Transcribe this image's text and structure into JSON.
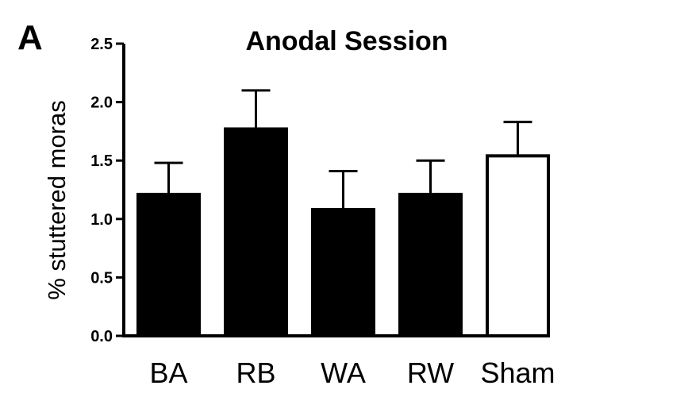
{
  "panel_label": "A",
  "chart_data": {
    "type": "bar",
    "title": "Anodal Session",
    "xlabel": "",
    "ylabel": "% stuttered moras",
    "categories": [
      "BA",
      "RB",
      "WA",
      "RW",
      "Sham"
    ],
    "values": [
      1.21,
      1.77,
      1.08,
      1.21,
      1.54
    ],
    "error_upper": [
      0.27,
      0.33,
      0.33,
      0.29,
      0.29
    ],
    "bar_fill": [
      "#000000",
      "#000000",
      "#000000",
      "#000000",
      "#ffffff"
    ],
    "ylim": [
      0,
      2.5
    ],
    "yticks": [
      "0.0",
      "0.5",
      "1.0",
      "1.5",
      "2.0",
      "2.5"
    ],
    "grid": false,
    "legend": "none"
  }
}
